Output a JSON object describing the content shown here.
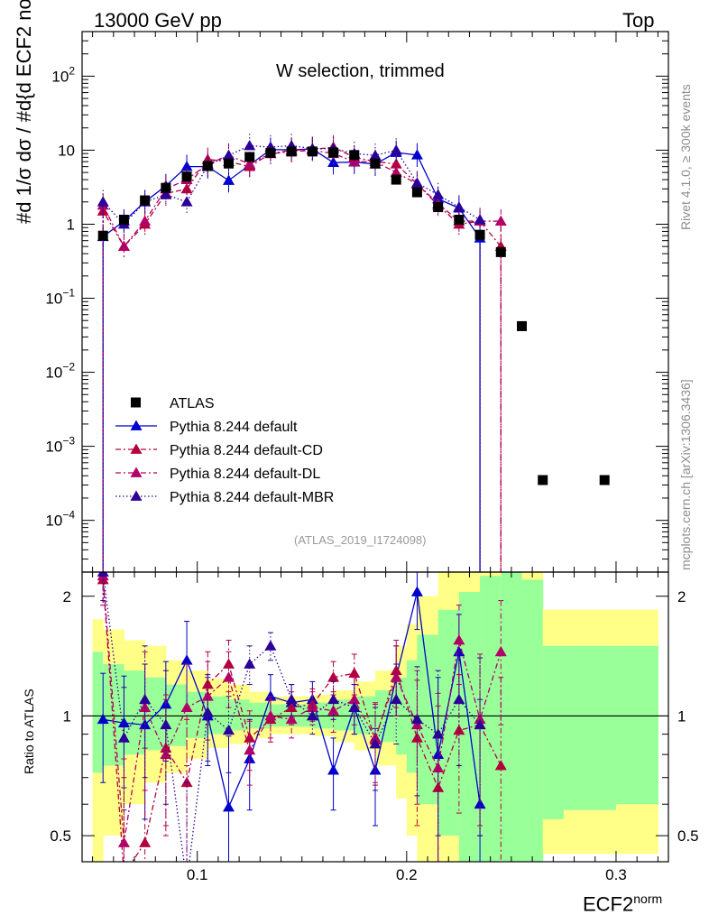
{
  "header": {
    "left": "13000 GeV pp",
    "right": "Top"
  },
  "side_labels": {
    "rivet": "Rivet 4.1.0, ≥ 300k events",
    "mcplots": "mcplots.cern.ch [arXiv:1306.3436]"
  },
  "chart_data": {
    "type": "scatter",
    "title": "W selection, trimmed",
    "analysis_tag": "(ATLAS_2019_I1724098)",
    "xlabel": "ECF2",
    "xlabel_sup": "norm",
    "ylabel": "#d 1/σ dσ / #d{d ECF2 norm}",
    "ratio_ylabel": "Ratio to ATLAS",
    "xlim": [
      0.045,
      0.325
    ],
    "ylim_main": [
      2e-05,
      400
    ],
    "ylim_ratio": [
      0.43,
      2.3
    ],
    "x_ticks": [
      {
        "v": 0.1,
        "label": "0.1"
      },
      {
        "v": 0.2,
        "label": "0.2"
      },
      {
        "v": 0.3,
        "label": "0.3"
      }
    ],
    "y_ticks_main": [
      {
        "v": 0.0001,
        "base": "10",
        "exp": "−4"
      },
      {
        "v": 0.001,
        "base": "10",
        "exp": "−3"
      },
      {
        "v": 0.01,
        "base": "10",
        "exp": "−2"
      },
      {
        "v": 0.1,
        "base": "10",
        "exp": "−1"
      },
      {
        "v": 1,
        "base": "1",
        "exp": ""
      },
      {
        "v": 10,
        "base": "10",
        "exp": ""
      },
      {
        "v": 100,
        "base": "10",
        "exp": "2"
      }
    ],
    "y_ticks_ratio": [
      {
        "v": 0.5,
        "label": "0.5"
      },
      {
        "v": 1,
        "label": "1"
      },
      {
        "v": 2,
        "label": "2"
      }
    ],
    "legend": [
      {
        "label": "ATLAS",
        "marker": "square",
        "color": "#000000"
      },
      {
        "label": "Pythia 8.244 default",
        "marker": "triangle",
        "color": "#0000cc"
      },
      {
        "label": "Pythia 8.244 default-CD",
        "marker": "triangle",
        "color": "#b3003c"
      },
      {
        "label": "Pythia 8.244 default-DL",
        "marker": "triangle",
        "color": "#b30066"
      },
      {
        "label": "Pythia 8.244 default-MBR",
        "marker": "triangle",
        "color": "#2a0099"
      }
    ],
    "data": {
      "name": "ATLAS",
      "x": [
        0.055,
        0.065,
        0.075,
        0.085,
        0.095,
        0.105,
        0.115,
        0.125,
        0.135,
        0.145,
        0.155,
        0.165,
        0.175,
        0.185,
        0.195,
        0.205,
        0.215,
        0.225,
        0.235,
        0.245,
        0.255,
        0.265,
        0.295
      ],
      "y": [
        0.7,
        1.15,
        2.1,
        3.1,
        4.4,
        6.1,
        6.6,
        8.1,
        9.2,
        9.6,
        9.6,
        9.3,
        8.6,
        6.6,
        4.0,
        2.7,
        1.7,
        1.15,
        0.72,
        0.42,
        0.042,
        0.00035,
        0.00035
      ],
      "x_plot": [
        0.055,
        0.065,
        0.075,
        0.085,
        0.095,
        0.105,
        0.115,
        0.125,
        0.135,
        0.145,
        0.155,
        0.165,
        0.175,
        0.185,
        0.195,
        0.205,
        0.215,
        0.225,
        0.235,
        0.245,
        0.255,
        0.265,
        0.2945
      ]
    },
    "uncertainty_bands": [
      {
        "x0": 0.05,
        "x1": 0.055,
        "stat": [
          0.72,
          1.45
        ],
        "total": [
          0.43,
          1.75
        ]
      },
      {
        "x0": 0.055,
        "x1": 0.065,
        "stat": [
          0.75,
          1.35
        ],
        "total": [
          0.5,
          1.65
        ]
      },
      {
        "x0": 0.065,
        "x1": 0.075,
        "stat": [
          0.8,
          1.3
        ],
        "total": [
          0.6,
          1.55
        ]
      },
      {
        "x0": 0.075,
        "x1": 0.085,
        "stat": [
          0.82,
          1.25
        ],
        "total": [
          0.68,
          1.5
        ]
      },
      {
        "x0": 0.085,
        "x1": 0.095,
        "stat": [
          0.84,
          1.2
        ],
        "total": [
          0.72,
          1.38
        ]
      },
      {
        "x0": 0.095,
        "x1": 0.105,
        "stat": [
          0.88,
          1.15
        ],
        "total": [
          0.78,
          1.3
        ]
      },
      {
        "x0": 0.105,
        "x1": 0.115,
        "stat": [
          0.9,
          1.12
        ],
        "total": [
          0.83,
          1.24
        ]
      },
      {
        "x0": 0.115,
        "x1": 0.125,
        "stat": [
          0.92,
          1.1
        ],
        "total": [
          0.85,
          1.2
        ]
      },
      {
        "x0": 0.125,
        "x1": 0.135,
        "stat": [
          0.93,
          1.08
        ],
        "total": [
          0.88,
          1.15
        ]
      },
      {
        "x0": 0.135,
        "x1": 0.145,
        "stat": [
          0.94,
          1.07
        ],
        "total": [
          0.9,
          1.12
        ]
      },
      {
        "x0": 0.145,
        "x1": 0.155,
        "stat": [
          0.94,
          1.07
        ],
        "total": [
          0.9,
          1.12
        ]
      },
      {
        "x0": 0.155,
        "x1": 0.165,
        "stat": [
          0.93,
          1.08
        ],
        "total": [
          0.89,
          1.13
        ]
      },
      {
        "x0": 0.165,
        "x1": 0.175,
        "stat": [
          0.92,
          1.1
        ],
        "total": [
          0.86,
          1.16
        ]
      },
      {
        "x0": 0.175,
        "x1": 0.185,
        "stat": [
          0.9,
          1.12
        ],
        "total": [
          0.82,
          1.22
        ]
      },
      {
        "x0": 0.185,
        "x1": 0.195,
        "stat": [
          0.86,
          1.16
        ],
        "total": [
          0.75,
          1.3
        ]
      },
      {
        "x0": 0.195,
        "x1": 0.2,
        "stat": [
          0.8,
          1.25
        ],
        "total": [
          0.62,
          1.5
        ]
      },
      {
        "x0": 0.2,
        "x1": 0.205,
        "stat": [
          0.72,
          1.38
        ],
        "total": [
          0.5,
          1.7
        ]
      },
      {
        "x0": 0.205,
        "x1": 0.215,
        "stat": [
          0.6,
          1.6
        ],
        "total": [
          0.43,
          2.0
        ]
      },
      {
        "x0": 0.215,
        "x1": 0.225,
        "stat": [
          0.5,
          1.85
        ],
        "total": [
          0.43,
          2.3
        ]
      },
      {
        "x0": 0.225,
        "x1": 0.235,
        "stat": [
          0.43,
          2.05
        ],
        "total": [
          0.43,
          2.3
        ]
      },
      {
        "x0": 0.235,
        "x1": 0.245,
        "stat": [
          0.43,
          2.25
        ],
        "total": [
          0.43,
          2.3
        ]
      },
      {
        "x0": 0.245,
        "x1": 0.255,
        "stat": [
          0.43,
          2.3
        ],
        "total": [
          0.43,
          2.3
        ]
      },
      {
        "x0": 0.255,
        "x1": 0.265,
        "stat": [
          0.43,
          2.2
        ],
        "total": [
          0.43,
          2.3
        ]
      },
      {
        "x0": 0.265,
        "x1": 0.275,
        "stat": [
          0.55,
          1.5
        ],
        "total": [
          0.45,
          1.85
        ]
      },
      {
        "x0": 0.275,
        "x1": 0.3,
        "stat": [
          0.58,
          1.5
        ],
        "total": [
          0.45,
          1.85
        ]
      },
      {
        "x0": 0.3,
        "x1": 0.32,
        "stat": [
          0.6,
          1.5
        ],
        "total": [
          0.45,
          1.85
        ]
      }
    ],
    "series": [
      {
        "name": "Pythia 8.244 default",
        "style": "solid",
        "color": "#0000cc",
        "x": [
          0.055,
          0.065,
          0.075,
          0.085,
          0.095,
          0.105,
          0.115,
          0.125,
          0.135,
          0.145,
          0.155,
          0.165,
          0.175,
          0.185,
          0.195,
          0.205,
          0.215,
          0.225,
          0.235
        ],
        "y": [
          0.68,
          1.1,
          2.0,
          3.3,
          6.0,
          6.0,
          3.9,
          6.3,
          10.2,
          10.1,
          10.4,
          6.8,
          6.9,
          6.5,
          9.3,
          8.6,
          2.2,
          1.65,
          0.65
        ],
        "ratio": [
          0.98,
          0.96,
          0.95,
          1.07,
          1.38,
          1.0,
          0.59,
          0.78,
          1.12,
          1.08,
          1.1,
          0.73,
          1.05,
          0.73,
          1.25,
          2.05,
          0.8,
          1.45,
          0.6
        ],
        "ratio_err": [
          0.3,
          0.3,
          0.4,
          0.3,
          0.35,
          0.25,
          0.3,
          0.2,
          0.15,
          0.12,
          0.12,
          0.15,
          0.15,
          0.2,
          0.25,
          0.4,
          0.45,
          0.35,
          0.5
        ]
      },
      {
        "name": "Pythia 8.244 default-CD",
        "style": "dashed",
        "color": "#b3003c",
        "x": [
          0.055,
          0.065,
          0.075,
          0.085,
          0.095,
          0.105,
          0.115,
          0.125,
          0.135,
          0.145,
          0.155,
          0.165,
          0.175,
          0.185,
          0.195,
          0.205,
          0.215,
          0.225,
          0.235,
          0.245
        ],
        "y": [
          1.5,
          0.5,
          1.0,
          2.6,
          3.0,
          7.5,
          7.0,
          6.0,
          9.0,
          10.0,
          10.2,
          11.0,
          8.0,
          7.0,
          6.5,
          3.5,
          1.8,
          1.0,
          1.1,
          0.5
        ],
        "ratio": [
          2.2,
          0.4,
          0.48,
          0.83,
          0.68,
          1.2,
          1.35,
          0.88,
          0.98,
          1.05,
          1.07,
          1.25,
          1.28,
          0.87,
          1.3,
          0.88,
          0.66,
          0.92,
          0.95,
          0.75
        ],
        "ratio_err": [
          0.3,
          0.3,
          0.35,
          0.3,
          0.3,
          0.25,
          0.2,
          0.15,
          0.12,
          0.1,
          0.1,
          0.12,
          0.15,
          0.2,
          0.25,
          0.35,
          0.4,
          0.35,
          0.45,
          0.5
        ]
      },
      {
        "name": "Pythia 8.244 default-DL",
        "style": "dashed",
        "color": "#b30066",
        "x": [
          0.055,
          0.065,
          0.075,
          0.085,
          0.095,
          0.105,
          0.115,
          0.125,
          0.135,
          0.145,
          0.155,
          0.165,
          0.175,
          0.185,
          0.195,
          0.205,
          0.215,
          0.225,
          0.235,
          0.245
        ],
        "y": [
          1.8,
          0.5,
          1.1,
          3.0,
          4.0,
          6.5,
          8.5,
          6.5,
          9.0,
          9.5,
          10.0,
          9.0,
          7.0,
          7.0,
          5.0,
          3.5,
          1.9,
          1.1,
          1.1,
          1.1
        ],
        "ratio": [
          2.25,
          0.48,
          1.05,
          0.8,
          1.05,
          1.12,
          1.25,
          0.82,
          1.0,
          0.98,
          1.05,
          1.03,
          1.1,
          0.88,
          1.25,
          0.95,
          0.74,
          1.55,
          0.98,
          1.45
        ],
        "ratio_err": [
          0.35,
          0.3,
          0.4,
          0.3,
          0.3,
          0.25,
          0.2,
          0.15,
          0.12,
          0.1,
          0.1,
          0.12,
          0.15,
          0.2,
          0.25,
          0.35,
          0.4,
          0.35,
          0.45,
          0.5
        ]
      },
      {
        "name": "Pythia 8.244 default-MBR",
        "style": "dotted",
        "color": "#2a0099",
        "x": [
          0.055,
          0.065,
          0.075,
          0.085,
          0.095,
          0.105,
          0.115,
          0.125,
          0.135,
          0.145,
          0.155,
          0.165,
          0.175,
          0.185,
          0.195,
          0.205,
          0.215,
          0.225,
          0.235
        ],
        "y": [
          2.0,
          1.0,
          2.0,
          2.5,
          2.0,
          6.2,
          8.5,
          11.5,
          11.0,
          11.5,
          10.5,
          10.5,
          9.0,
          8.5,
          10.0,
          3.6,
          2.5,
          1.7,
          1.15
        ],
        "ratio": [
          2.3,
          0.88,
          1.1,
          0.95,
          0.38,
          1.02,
          0.92,
          1.35,
          1.5,
          1.1,
          1.0,
          1.1,
          1.05,
          0.85,
          1.1,
          0.98,
          0.9,
          1.1,
          0.95
        ],
        "ratio_err": [
          0.35,
          0.3,
          0.4,
          0.35,
          0.3,
          0.25,
          0.2,
          0.15,
          0.12,
          0.1,
          0.1,
          0.12,
          0.15,
          0.2,
          0.25,
          0.35,
          0.4,
          0.35,
          0.45
        ]
      }
    ],
    "colors": {
      "band_stat": "#99ff99",
      "band_total": "#ffff88",
      "frame": "#000000"
    }
  }
}
